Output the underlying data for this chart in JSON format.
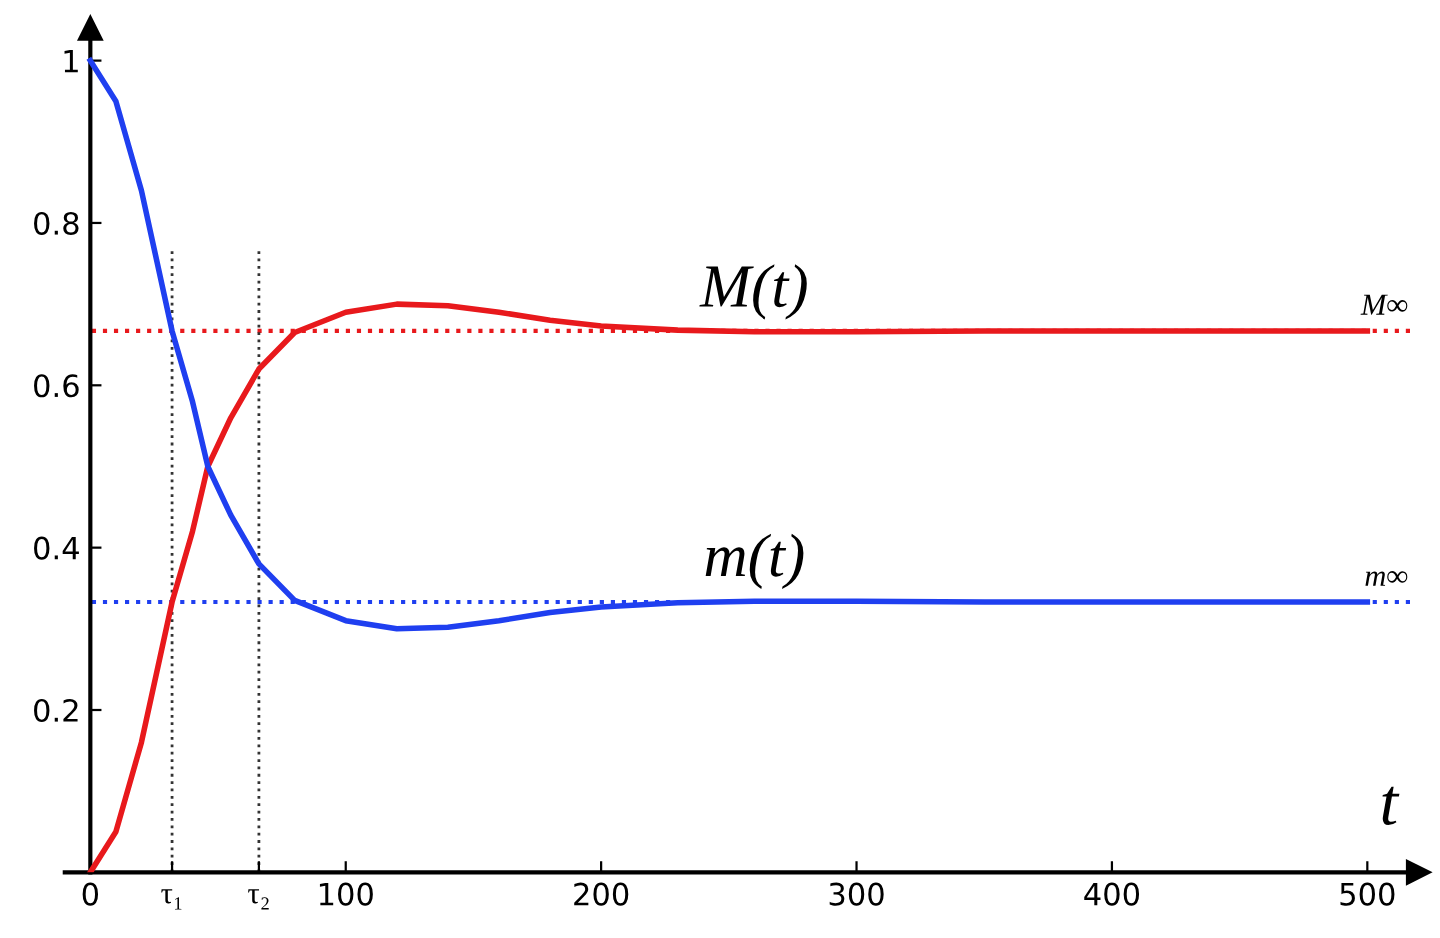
{
  "chart_data": {
    "type": "line",
    "xlabel": "t",
    "x": [
      0,
      10,
      20,
      32,
      40,
      46,
      55,
      66,
      80,
      100,
      120,
      140,
      160,
      180,
      200,
      230,
      260,
      300,
      350,
      400,
      450,
      500
    ],
    "series": [
      {
        "name": "M(t)",
        "color": "#e8191c",
        "values": [
          0,
          0.05,
          0.16,
          0.333,
          0.42,
          0.5,
          0.56,
          0.62,
          0.665,
          0.69,
          0.7,
          0.698,
          0.69,
          0.68,
          0.673,
          0.668,
          0.666,
          0.666,
          0.667,
          0.667,
          0.667,
          0.667
        ]
      },
      {
        "name": "m(t)",
        "color": "#1f3ff0",
        "values": [
          1,
          0.95,
          0.84,
          0.667,
          0.58,
          0.5,
          0.44,
          0.38,
          0.335,
          0.31,
          0.3,
          0.302,
          0.31,
          0.32,
          0.327,
          0.332,
          0.334,
          0.334,
          0.333,
          0.333,
          0.333,
          0.333
        ]
      }
    ],
    "ref_lines": [
      {
        "axis": "y",
        "value": 0.667,
        "label": "M∞",
        "color": "#e8191c",
        "line_style": "dotted"
      },
      {
        "axis": "y",
        "value": 0.333,
        "label": "m∞",
        "color": "#1f3ff0",
        "line_style": "dotted"
      },
      {
        "axis": "x",
        "value": 32,
        "label": null,
        "color": "#333333",
        "line_style": "dotted"
      },
      {
        "axis": "x",
        "value": 66,
        "label": null,
        "color": "#333333",
        "line_style": "dotted"
      }
    ],
    "xlim": [
      -10,
      520
    ],
    "ylim": [
      0,
      1.04
    ],
    "xticks": [
      0,
      {
        "value": 32,
        "label": "τ₁"
      },
      {
        "value": 66,
        "label": "τ₂"
      },
      100,
      200,
      300,
      400,
      500
    ],
    "yticks": [
      {
        "value": 0,
        "label": null
      },
      0.2,
      0.4,
      0.6,
      0.8,
      1
    ],
    "grid": false,
    "legend": false,
    "marker": "none",
    "line_style": "solid"
  }
}
